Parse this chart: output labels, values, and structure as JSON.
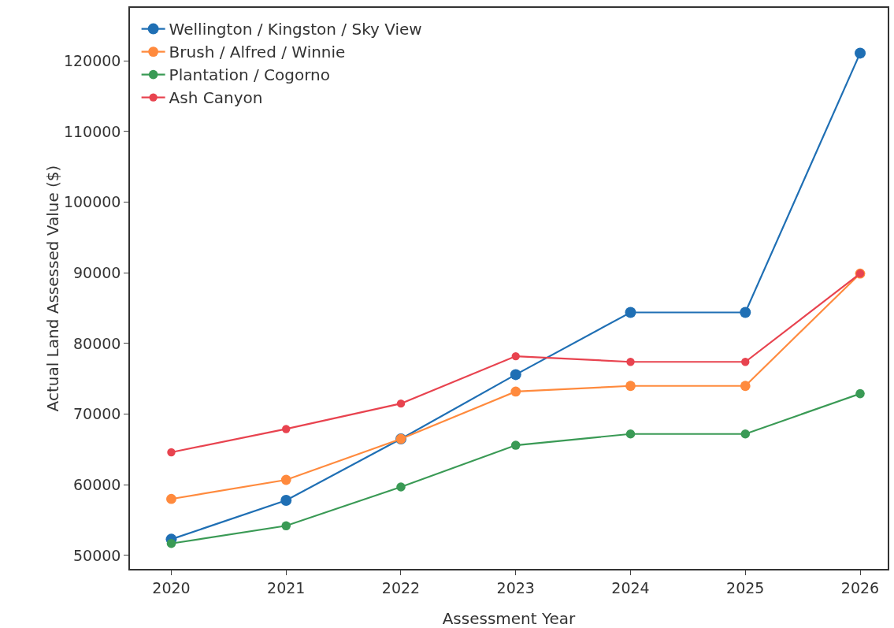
{
  "chart_data": {
    "type": "line",
    "xlabel": "Assessment Year",
    "ylabel": "Actual Land Assessed Value ($)",
    "x": [
      2020,
      2021,
      2022,
      2023,
      2024,
      2025,
      2026
    ],
    "series": [
      {
        "name": "Wellington / Kingston / Sky View",
        "color": "#1f6fb4",
        "values": [
          52300,
          57800,
          66500,
          75600,
          84400,
          84400,
          121100
        ]
      },
      {
        "name": "Brush / Alfred / Winnie",
        "color": "#ff8a3d",
        "values": [
          58000,
          60700,
          66500,
          73200,
          74000,
          74000,
          89900
        ]
      },
      {
        "name": "Plantation / Cogorno",
        "color": "#3a9a55",
        "values": [
          51700,
          54200,
          59700,
          65600,
          67200,
          67200,
          72900
        ]
      },
      {
        "name": "Ash Canyon",
        "color": "#e8434f",
        "values": [
          64600,
          67900,
          71500,
          78200,
          77400,
          77400,
          89900
        ]
      }
    ],
    "xlim": [
      2019.64,
      2026.24
    ],
    "xticks": [
      2020,
      2021,
      2022,
      2023,
      2024,
      2025,
      2026
    ],
    "ylim": [
      48100,
      127500
    ],
    "yticks": [
      50000,
      60000,
      70000,
      80000,
      90000,
      100000,
      110000,
      120000
    ],
    "grid": false,
    "legend": "top left",
    "marker": "circle",
    "line_style": "solid"
  }
}
